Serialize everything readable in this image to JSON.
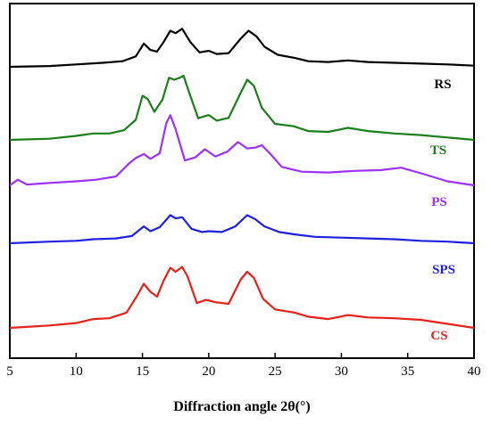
{
  "chart_data": {
    "type": "line",
    "xlabel": "Diffraction angle 2θ(°)",
    "ylabel": "",
    "xlim": [
      5,
      40
    ],
    "xticks": [
      "5",
      "10",
      "15",
      "20",
      "25",
      "30",
      "35",
      "40"
    ],
    "grid": false,
    "y_ticks_shown": false,
    "series": [
      {
        "name": "RS",
        "color": "#000000",
        "offset": 4,
        "points": [
          [
            5,
            0.0
          ],
          [
            8,
            0.02
          ],
          [
            10,
            0.06
          ],
          [
            12,
            0.1
          ],
          [
            13.5,
            0.14
          ],
          [
            14.5,
            0.26
          ],
          [
            15.1,
            0.58
          ],
          [
            15.6,
            0.42
          ],
          [
            16.1,
            0.38
          ],
          [
            16.6,
            0.62
          ],
          [
            17.1,
            0.9
          ],
          [
            17.5,
            0.84
          ],
          [
            18.0,
            0.95
          ],
          [
            18.6,
            0.62
          ],
          [
            19.3,
            0.36
          ],
          [
            20.0,
            0.4
          ],
          [
            20.6,
            0.32
          ],
          [
            21.5,
            0.34
          ],
          [
            22.4,
            0.7
          ],
          [
            23.0,
            0.9
          ],
          [
            23.6,
            0.76
          ],
          [
            24.2,
            0.5
          ],
          [
            25.2,
            0.3
          ],
          [
            26.5,
            0.22
          ],
          [
            27.5,
            0.14
          ],
          [
            29,
            0.12
          ],
          [
            30.5,
            0.16
          ],
          [
            32,
            0.12
          ],
          [
            34,
            0.1
          ],
          [
            36,
            0.08
          ],
          [
            38,
            0.06
          ],
          [
            40,
            0.03
          ]
        ]
      },
      {
        "name": "TS",
        "color": "#1a7f1a",
        "offset": 3,
        "points": [
          [
            5,
            0.0
          ],
          [
            8,
            0.03
          ],
          [
            10,
            0.1
          ],
          [
            11.3,
            0.16
          ],
          [
            12.5,
            0.16
          ],
          [
            13.6,
            0.24
          ],
          [
            14.5,
            0.5
          ],
          [
            15.0,
            1.1
          ],
          [
            15.4,
            1.02
          ],
          [
            15.9,
            0.7
          ],
          [
            16.5,
            1.0
          ],
          [
            17.0,
            1.55
          ],
          [
            17.4,
            1.5
          ],
          [
            17.8,
            1.55
          ],
          [
            18.1,
            1.6
          ],
          [
            18.5,
            1.2
          ],
          [
            19.2,
            0.54
          ],
          [
            20.0,
            0.62
          ],
          [
            20.6,
            0.48
          ],
          [
            21.5,
            0.55
          ],
          [
            22.3,
            1.1
          ],
          [
            22.9,
            1.5
          ],
          [
            23.4,
            1.35
          ],
          [
            24.0,
            0.8
          ],
          [
            25.0,
            0.4
          ],
          [
            26.4,
            0.34
          ],
          [
            27.5,
            0.22
          ],
          [
            29,
            0.2
          ],
          [
            30.5,
            0.3
          ],
          [
            32,
            0.22
          ],
          [
            34,
            0.16
          ],
          [
            36,
            0.12
          ],
          [
            38,
            0.06
          ],
          [
            40,
            0.0
          ]
        ]
      },
      {
        "name": "PS",
        "color": "#9b30ff",
        "offset": 2,
        "points": [
          [
            5,
            0.0
          ],
          [
            5.6,
            0.14
          ],
          [
            6.3,
            0.02
          ],
          [
            8,
            0.06
          ],
          [
            10,
            0.1
          ],
          [
            11.5,
            0.14
          ],
          [
            13,
            0.22
          ],
          [
            14.0,
            0.55
          ],
          [
            14.5,
            0.68
          ],
          [
            15.1,
            0.78
          ],
          [
            15.6,
            0.66
          ],
          [
            16.3,
            0.8
          ],
          [
            16.8,
            1.55
          ],
          [
            17.1,
            1.75
          ],
          [
            17.5,
            1.4
          ],
          [
            18.2,
            0.62
          ],
          [
            19.0,
            0.7
          ],
          [
            19.7,
            0.9
          ],
          [
            20.5,
            0.72
          ],
          [
            21.4,
            0.84
          ],
          [
            22.2,
            1.08
          ],
          [
            22.9,
            0.92
          ],
          [
            23.5,
            0.94
          ],
          [
            24.0,
            1.0
          ],
          [
            24.6,
            0.8
          ],
          [
            25.5,
            0.46
          ],
          [
            27,
            0.34
          ],
          [
            29,
            0.32
          ],
          [
            31,
            0.36
          ],
          [
            33,
            0.38
          ],
          [
            34.5,
            0.44
          ],
          [
            36,
            0.3
          ],
          [
            38,
            0.1
          ],
          [
            40,
            0.0
          ]
        ]
      },
      {
        "name": "SPS",
        "color": "#1f1fe0",
        "offset": 1,
        "points": [
          [
            5,
            0.0
          ],
          [
            8,
            0.04
          ],
          [
            10,
            0.06
          ],
          [
            11.3,
            0.1
          ],
          [
            13,
            0.12
          ],
          [
            14.2,
            0.18
          ],
          [
            15.1,
            0.42
          ],
          [
            15.6,
            0.3
          ],
          [
            16.3,
            0.4
          ],
          [
            17.1,
            0.7
          ],
          [
            17.5,
            0.62
          ],
          [
            18.0,
            0.65
          ],
          [
            18.7,
            0.36
          ],
          [
            19.5,
            0.28
          ],
          [
            20.0,
            0.3
          ],
          [
            21.0,
            0.28
          ],
          [
            22.0,
            0.42
          ],
          [
            22.9,
            0.7
          ],
          [
            23.5,
            0.6
          ],
          [
            24.2,
            0.42
          ],
          [
            25.3,
            0.28
          ],
          [
            26.5,
            0.22
          ],
          [
            28,
            0.16
          ],
          [
            30,
            0.14
          ],
          [
            32,
            0.12
          ],
          [
            34,
            0.1
          ],
          [
            36,
            0.06
          ],
          [
            38,
            0.04
          ],
          [
            40,
            0.0
          ]
        ]
      },
      {
        "name": "CS",
        "color": "#e8201a",
        "offset": 0,
        "points": [
          [
            5,
            0.0
          ],
          [
            8,
            0.06
          ],
          [
            10,
            0.12
          ],
          [
            11.3,
            0.22
          ],
          [
            12.5,
            0.24
          ],
          [
            13.8,
            0.38
          ],
          [
            14.6,
            0.8
          ],
          [
            15.1,
            1.1
          ],
          [
            15.6,
            0.9
          ],
          [
            16.1,
            0.78
          ],
          [
            16.6,
            1.18
          ],
          [
            17.1,
            1.5
          ],
          [
            17.5,
            1.4
          ],
          [
            18.0,
            1.52
          ],
          [
            18.4,
            1.28
          ],
          [
            19.1,
            0.62
          ],
          [
            19.8,
            0.7
          ],
          [
            20.5,
            0.64
          ],
          [
            21.5,
            0.6
          ],
          [
            22.4,
            1.2
          ],
          [
            22.9,
            1.4
          ],
          [
            23.4,
            1.25
          ],
          [
            24.1,
            0.72
          ],
          [
            25.0,
            0.46
          ],
          [
            26.5,
            0.38
          ],
          [
            27.5,
            0.28
          ],
          [
            29,
            0.22
          ],
          [
            30.5,
            0.32
          ],
          [
            32,
            0.26
          ],
          [
            34,
            0.24
          ],
          [
            36,
            0.2
          ],
          [
            38,
            0.1
          ],
          [
            40,
            0.0
          ]
        ]
      }
    ]
  }
}
